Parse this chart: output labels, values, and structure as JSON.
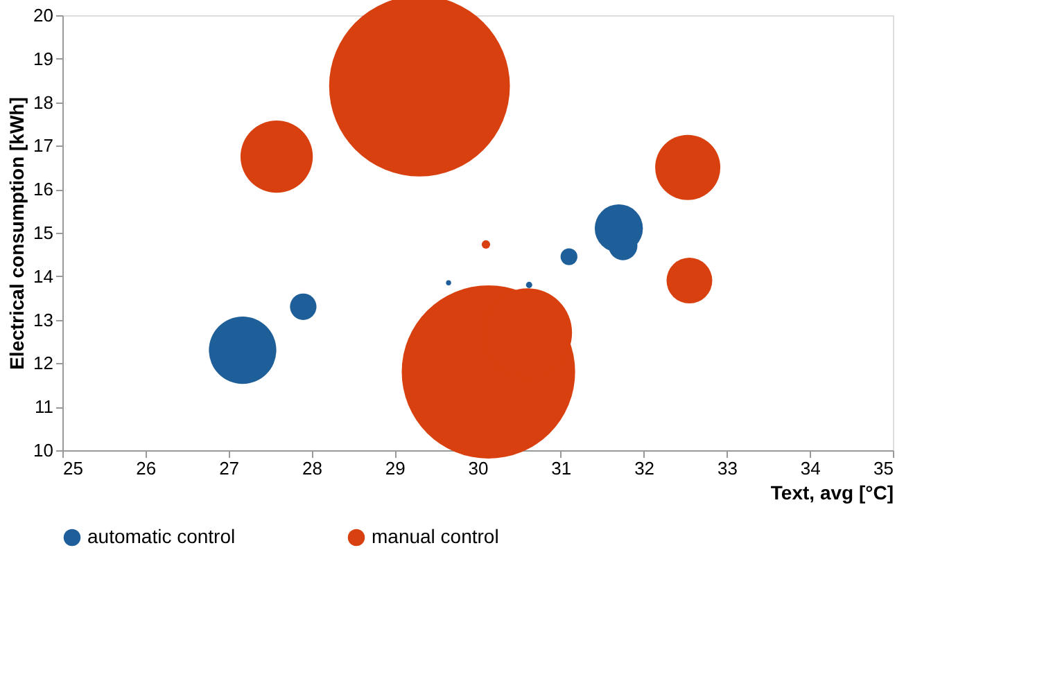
{
  "chart_data": {
    "type": "bubble",
    "xlabel": "Text, avg [°C]",
    "ylabel": "Electrical consumption [kWh]",
    "xlim": [
      25,
      35
    ],
    "xticks": [
      25,
      26,
      27,
      28,
      29,
      30,
      31,
      32,
      33,
      34,
      35
    ],
    "ylim": [
      10,
      20
    ],
    "yticks": [
      10,
      11,
      12,
      13,
      14,
      15,
      16,
      17,
      18,
      19,
      20
    ],
    "grid": false,
    "legend": "bottom",
    "series": [
      {
        "name": "automatic control",
        "color": "#1f5f99",
        "x": [
          27.17,
          27.9,
          29.65,
          30.62,
          31.1,
          31.7,
          31.75
        ],
        "values": [
          12.3,
          13.3,
          13.85,
          13.8,
          14.45,
          15.1,
          14.7
        ],
        "sizes": [
          0.139,
          0.0215,
          0.0008,
          0.0012,
          0.0087,
          0.071,
          0.0256
        ]
      },
      {
        "name": "manual control",
        "color": "#d9400f",
        "x": [
          29.3,
          27.58,
          30.13,
          30.6,
          30.1,
          32.53,
          32.55
        ],
        "values": [
          18.37,
          16.75,
          11.8,
          12.7,
          14.73,
          16.5,
          13.9
        ],
        "sizes": [
          1,
          0.16,
          0.92,
          0.243,
          0.0022,
          0.13,
          0.064
        ]
      }
    ]
  }
}
